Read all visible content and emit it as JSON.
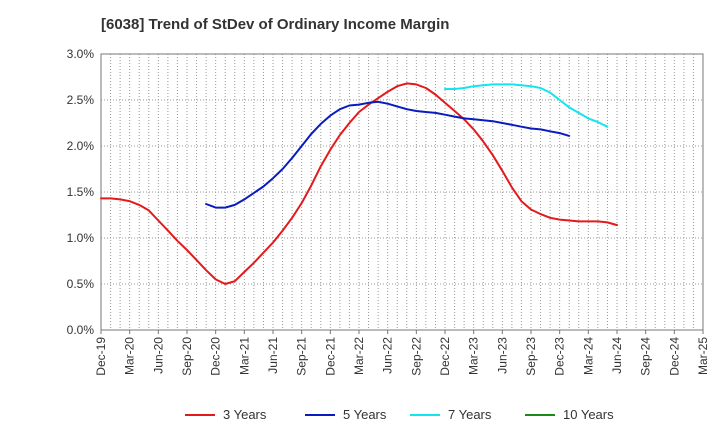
{
  "chart_data": {
    "type": "line",
    "title": "[6038]  Trend of StDev of Ordinary Income Margin",
    "xlabel": "",
    "ylabel": "",
    "x_ticks": [
      "Dec-19",
      "Mar-20",
      "Jun-20",
      "Sep-20",
      "Dec-20",
      "Mar-21",
      "Jun-21",
      "Sep-21",
      "Dec-21",
      "Mar-22",
      "Jun-22",
      "Sep-22",
      "Dec-22",
      "Mar-23",
      "Jun-23",
      "Sep-23",
      "Dec-23",
      "Mar-24",
      "Jun-24",
      "Sep-24",
      "Dec-24",
      "Mar-25"
    ],
    "y_ticks": [
      "0.0%",
      "0.5%",
      "1.0%",
      "1.5%",
      "2.0%",
      "2.5%",
      "3.0%"
    ],
    "ylim": [
      0,
      3.0
    ],
    "grid": true,
    "legend_position": "bottom",
    "series": [
      {
        "name": "3 Years",
        "color": "#e31a1c",
        "points": [
          [
            "Dec-19",
            1.43
          ],
          [
            "Jan-20",
            1.43
          ],
          [
            "Feb-20",
            1.42
          ],
          [
            "Mar-20",
            1.4
          ],
          [
            "Apr-20",
            1.36
          ],
          [
            "May-20",
            1.3
          ],
          [
            "Jun-20",
            1.19
          ],
          [
            "Jul-20",
            1.08
          ],
          [
            "Aug-20",
            0.97
          ],
          [
            "Sep-20",
            0.87
          ],
          [
            "Oct-20",
            0.76
          ],
          [
            "Nov-20",
            0.65
          ],
          [
            "Dec-20",
            0.55
          ],
          [
            "Jan-21",
            0.5
          ],
          [
            "Feb-21",
            0.53
          ],
          [
            "Mar-21",
            0.63
          ],
          [
            "Apr-21",
            0.73
          ],
          [
            "May-21",
            0.84
          ],
          [
            "Jun-21",
            0.95
          ],
          [
            "Jul-21",
            1.08
          ],
          [
            "Aug-21",
            1.22
          ],
          [
            "Sep-21",
            1.38
          ],
          [
            "Oct-21",
            1.57
          ],
          [
            "Nov-21",
            1.78
          ],
          [
            "Dec-21",
            1.96
          ],
          [
            "Jan-22",
            2.12
          ],
          [
            "Feb-22",
            2.25
          ],
          [
            "Mar-22",
            2.37
          ],
          [
            "Apr-22",
            2.45
          ],
          [
            "May-22",
            2.52
          ],
          [
            "Jun-22",
            2.59
          ],
          [
            "Jul-22",
            2.65
          ],
          [
            "Aug-22",
            2.68
          ],
          [
            "Sep-22",
            2.67
          ],
          [
            "Oct-22",
            2.63
          ],
          [
            "Nov-22",
            2.56
          ],
          [
            "Dec-22",
            2.47
          ],
          [
            "Jan-23",
            2.38
          ],
          [
            "Feb-23",
            2.29
          ],
          [
            "Mar-23",
            2.18
          ],
          [
            "Apr-23",
            2.05
          ],
          [
            "May-23",
            1.9
          ],
          [
            "Jun-23",
            1.73
          ],
          [
            "Jul-23",
            1.55
          ],
          [
            "Aug-23",
            1.4
          ],
          [
            "Sep-23",
            1.31
          ],
          [
            "Oct-23",
            1.26
          ],
          [
            "Nov-23",
            1.22
          ],
          [
            "Dec-23",
            1.2
          ],
          [
            "Jan-24",
            1.19
          ],
          [
            "Feb-24",
            1.18
          ],
          [
            "Mar-24",
            1.18
          ],
          [
            "Apr-24",
            1.18
          ],
          [
            "May-24",
            1.17
          ],
          [
            "Jun-24",
            1.14
          ]
        ]
      },
      {
        "name": "5 Years",
        "color": "#0a1bbf",
        "points": [
          [
            "Nov-20",
            1.37
          ],
          [
            "Dec-20",
            1.33
          ],
          [
            "Jan-21",
            1.33
          ],
          [
            "Feb-21",
            1.36
          ],
          [
            "Mar-21",
            1.42
          ],
          [
            "Apr-21",
            1.49
          ],
          [
            "May-21",
            1.56
          ],
          [
            "Jun-21",
            1.65
          ],
          [
            "Jul-21",
            1.75
          ],
          [
            "Aug-21",
            1.87
          ],
          [
            "Sep-21",
            2.0
          ],
          [
            "Oct-21",
            2.13
          ],
          [
            "Nov-21",
            2.24
          ],
          [
            "Dec-21",
            2.33
          ],
          [
            "Jan-22",
            2.4
          ],
          [
            "Feb-22",
            2.44
          ],
          [
            "Mar-22",
            2.45
          ],
          [
            "Apr-22",
            2.47
          ],
          [
            "May-22",
            2.48
          ],
          [
            "Jun-22",
            2.46
          ],
          [
            "Jul-22",
            2.43
          ],
          [
            "Aug-22",
            2.4
          ],
          [
            "Sep-22",
            2.38
          ],
          [
            "Oct-22",
            2.37
          ],
          [
            "Nov-22",
            2.36
          ],
          [
            "Dec-22",
            2.34
          ],
          [
            "Jan-23",
            2.32
          ],
          [
            "Feb-23",
            2.3
          ],
          [
            "Mar-23",
            2.29
          ],
          [
            "Apr-23",
            2.28
          ],
          [
            "May-23",
            2.27
          ],
          [
            "Jun-23",
            2.25
          ],
          [
            "Jul-23",
            2.23
          ],
          [
            "Aug-23",
            2.21
          ],
          [
            "Sep-23",
            2.19
          ],
          [
            "Oct-23",
            2.18
          ],
          [
            "Nov-23",
            2.16
          ],
          [
            "Dec-23",
            2.14
          ],
          [
            "Jan-24",
            2.11
          ]
        ]
      },
      {
        "name": "7 Years",
        "color": "#12e5f0",
        "points": [
          [
            "Dec-22",
            2.62
          ],
          [
            "Jan-23",
            2.62
          ],
          [
            "Feb-23",
            2.63
          ],
          [
            "Mar-23",
            2.65
          ],
          [
            "Apr-23",
            2.66
          ],
          [
            "May-23",
            2.67
          ],
          [
            "Jun-23",
            2.67
          ],
          [
            "Jul-23",
            2.67
          ],
          [
            "Aug-23",
            2.66
          ],
          [
            "Sep-23",
            2.65
          ],
          [
            "Oct-23",
            2.63
          ],
          [
            "Nov-23",
            2.58
          ],
          [
            "Dec-23",
            2.5
          ],
          [
            "Jan-24",
            2.42
          ],
          [
            "Feb-24",
            2.36
          ],
          [
            "Mar-24",
            2.3
          ],
          [
            "Apr-24",
            2.26
          ],
          [
            "May-24",
            2.21
          ]
        ]
      },
      {
        "name": "10 Years",
        "color": "#1a8a1a",
        "points": []
      }
    ]
  }
}
